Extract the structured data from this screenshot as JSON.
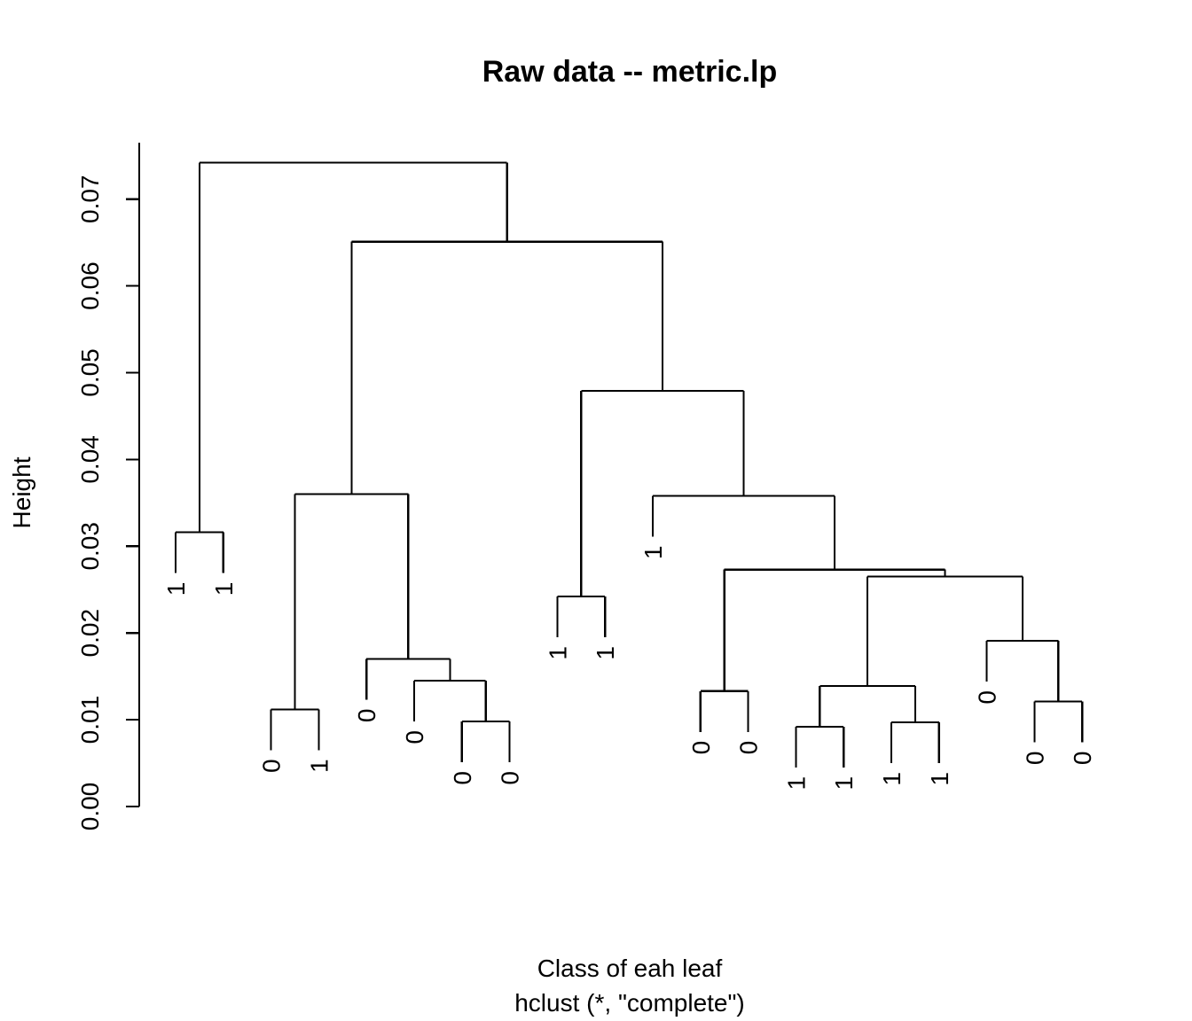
{
  "chart_data": {
    "type": "dendrogram",
    "title": "Raw data -- metric.lp",
    "xlabel": "Class of eah leaf",
    "subtitle": "hclust (*, \"complete\")",
    "ylabel": "Height",
    "ylim": [
      0,
      0.077
    ],
    "yticks": [
      "0.00",
      "0.01",
      "0.02",
      "0.03",
      "0.04",
      "0.05",
      "0.06",
      "0.07"
    ],
    "hang": 0.0047,
    "leaves": [
      {
        "label": "1",
        "id": "L1"
      },
      {
        "label": "1",
        "id": "L2"
      },
      {
        "label": "0",
        "id": "L3"
      },
      {
        "label": "1",
        "id": "L4"
      },
      {
        "label": "0",
        "id": "L5"
      },
      {
        "label": "0",
        "id": "L6"
      },
      {
        "label": "0",
        "id": "L7"
      },
      {
        "label": "0",
        "id": "L8"
      },
      {
        "label": "1",
        "id": "L9"
      },
      {
        "label": "1",
        "id": "L10"
      },
      {
        "label": "1",
        "id": "L11"
      },
      {
        "label": "0",
        "id": "L12"
      },
      {
        "label": "0",
        "id": "L13"
      },
      {
        "label": "1",
        "id": "L14"
      },
      {
        "label": "1",
        "id": "L15"
      },
      {
        "label": "1",
        "id": "L16"
      },
      {
        "label": "1",
        "id": "L17"
      },
      {
        "label": "0",
        "id": "L18"
      },
      {
        "label": "0",
        "id": "L19"
      },
      {
        "label": "0",
        "id": "L20"
      }
    ],
    "merges": [
      {
        "id": "N1",
        "left": "L1",
        "right": "L2",
        "height": 0.0316
      },
      {
        "id": "N2",
        "left": "L3",
        "right": "L4",
        "height": 0.0112
      },
      {
        "id": "N3",
        "left": "L7",
        "right": "L8",
        "height": 0.0098
      },
      {
        "id": "N4",
        "left": "L6",
        "right": "N3",
        "height": 0.0145
      },
      {
        "id": "N5",
        "left": "L5",
        "right": "N4",
        "height": 0.017
      },
      {
        "id": "N6",
        "left": "N2",
        "right": "N5",
        "height": 0.036
      },
      {
        "id": "N7",
        "left": "L9",
        "right": "L10",
        "height": 0.0242
      },
      {
        "id": "N8",
        "left": "L12",
        "right": "L13",
        "height": 0.0133
      },
      {
        "id": "N9",
        "left": "L14",
        "right": "L15",
        "height": 0.0092
      },
      {
        "id": "N10",
        "left": "L16",
        "right": "L17",
        "height": 0.0097
      },
      {
        "id": "N11",
        "left": "N9",
        "right": "N10",
        "height": 0.0139
      },
      {
        "id": "N12",
        "left": "L19",
        "right": "L20",
        "height": 0.0121
      },
      {
        "id": "N13",
        "left": "L18",
        "right": "N12",
        "height": 0.0191
      },
      {
        "id": "N14",
        "left": "N11",
        "right": "N13",
        "height": 0.0265
      },
      {
        "id": "N15",
        "left": "N8",
        "right": "N14",
        "height": 0.0273
      },
      {
        "id": "N16",
        "left": "L11",
        "right": "N15",
        "height": 0.0358
      },
      {
        "id": "N17",
        "left": "N7",
        "right": "N16",
        "height": 0.0479
      },
      {
        "id": "N18",
        "left": "N6",
        "right": "N17",
        "height": 0.0651
      },
      {
        "id": "N19",
        "left": "N1",
        "right": "N18",
        "height": 0.0742
      }
    ]
  }
}
